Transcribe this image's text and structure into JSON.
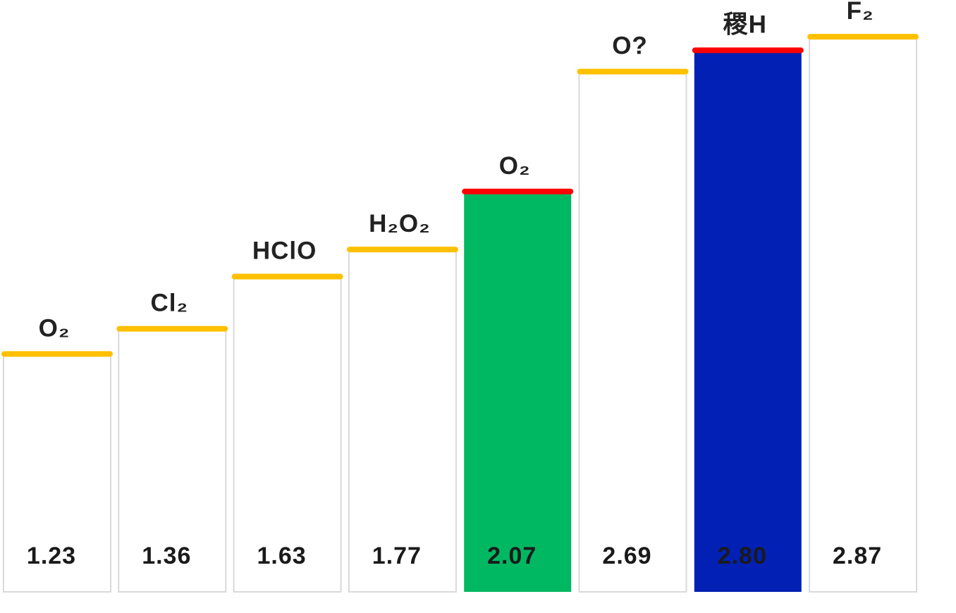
{
  "chart_data": {
    "type": "bar",
    "categories": [
      "O₂",
      "Cl₂",
      "HClO",
      "H₂O₂",
      "O₂",
      "O?",
      "稷H",
      "F₂"
    ],
    "values": [
      1.23,
      1.36,
      1.63,
      1.77,
      2.07,
      2.69,
      2.8,
      2.87
    ],
    "value_labels": [
      "1.23",
      "1.36",
      "1.63",
      "1.77",
      "2.07",
      "2.69",
      "2.80",
      "2.87"
    ],
    "ylim": [
      0,
      3.06
    ],
    "grid": false,
    "bar_fills": [
      "#ffffff",
      "#ffffff",
      "#ffffff",
      "#ffffff",
      "#00b862",
      "#ffffff",
      "#0320b4",
      "#ffffff"
    ],
    "cap_colors": [
      "#ffc000",
      "#ffc000",
      "#ffc000",
      "#ffc000",
      "#ff0000",
      "#ffc000",
      "#ff0000",
      "#ffc000"
    ],
    "colors": {
      "outline": "#d9d9d9",
      "label": "#222222",
      "background": "#ffffff"
    }
  }
}
